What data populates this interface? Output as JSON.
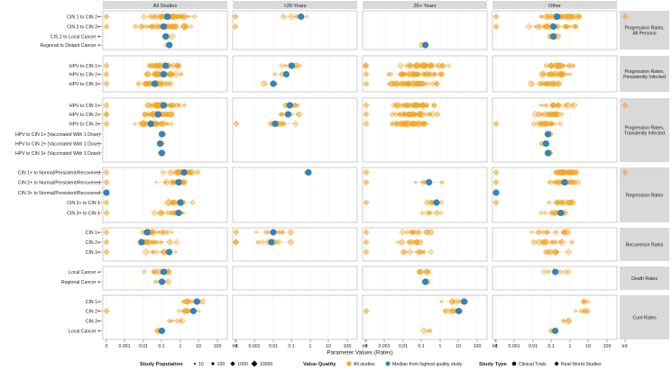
{
  "chart_data": {
    "type": "scatter",
    "panels": [
      "All Studies",
      "<26 Years",
      "26+ Years",
      "Other"
    ],
    "x_axis_label": "Parameter Values (Rates)",
    "x_ticks": [
      "0",
      "0.001",
      "0.01",
      "0.1",
      "1",
      "10",
      "100",
      "Inf."
    ],
    "x_scale": "log10 with 0 and Inf. endpoints",
    "groups": [
      {
        "label": "Progression Rates, All Persons",
        "rows": [
          "CIN 1 to CIN 2+",
          "CIN 2 to CIN 3+",
          "CIS 2 to Local Cancer +",
          "Regional to Distant Cancer +"
        ]
      },
      {
        "label": "Progression Rates, Persistently Infected",
        "rows": [
          "HPV to CIN 1+",
          "HPV to CIN 2+",
          "HPV to CIN 3+"
        ]
      },
      {
        "label": "Progression Rates, Transiently Infected",
        "rows": [
          "HPV to CIN 1+",
          "HPV to CIN 2+",
          "HPV to CIN 3+",
          "HPV to CIN 1+ (Vaccinated With 1 Dose)",
          "HPV to CIN 2+ (Vaccinated With 1 Dose)",
          "HPV to CIN 3+ (Vaccinated With 1 Dose)"
        ]
      },
      {
        "label": "Regression Rates",
        "rows": [
          "CIN 1+ to Normal/Persistent/Recovered",
          "CIN 2+ to Normal/Persistent/Recovered",
          "CIN 3+ to Normal/Persistent/Recovered",
          "CIN 2+ to CIN 1",
          "CIN 3+ to CIN 1"
        ]
      },
      {
        "label": "Recurrence Rates",
        "rows": [
          "CIN 1+",
          "CIN 2+",
          "CIN 3+"
        ]
      },
      {
        "label": "Death Rates",
        "rows": [
          "Local Cancer +",
          "Regional Cancer +"
        ]
      },
      {
        "label": "Cure Rates",
        "rows": [
          "CIN 1+",
          "CIN 2+",
          "CIN 3+",
          "Local Cancer +"
        ]
      }
    ],
    "series": [
      {
        "name": "Median from highest quality study",
        "color": "#2e86c1",
        "note": "median log10 rate per row and panel (null = no data); -5 denotes 0",
        "values": [
          [
            [
              -0.7,
              -0.5,
              null,
              -0.7
            ],
            [
              -0.9,
              null,
              null,
              -0.9
            ],
            [
              -0.8,
              null,
              null,
              -0.9
            ],
            [
              -0.6,
              null,
              -0.8,
              null
            ]
          ],
          [
            [
              -0.8,
              -1.0,
              null,
              null
            ],
            [
              -0.9,
              -1.3,
              null,
              null
            ],
            [
              -1.4,
              -2.0,
              null,
              null
            ]
          ],
          [
            [
              -0.9,
              -1.1,
              null,
              null
            ],
            [
              -1.2,
              -1.2,
              null,
              null
            ],
            [
              -1.6,
              -1.9,
              null,
              null
            ],
            [
              -1.0,
              null,
              null,
              -1.2
            ],
            [
              -1.1,
              null,
              null,
              -1.3
            ],
            [
              -1.0,
              null,
              null,
              -1.2
            ]
          ],
          [
            [
              0.2,
              -0.1,
              null,
              null
            ],
            [
              -0.1,
              null,
              -0.6,
              -0.3
            ],
            [
              -5,
              null,
              null,
              -5
            ],
            [
              0.0,
              null,
              -0.2,
              null
            ],
            [
              -0.1,
              null,
              null,
              -0.5
            ]
          ],
          [
            [
              -1.8,
              -2.0,
              null,
              null
            ],
            [
              -2.1,
              -2.1,
              null,
              null
            ],
            [
              -0.6,
              null,
              null,
              null
            ]
          ],
          [
            [
              -0.9,
              null,
              null,
              -0.8
            ],
            [
              -1.0,
              null,
              -0.8,
              null
            ]
          ],
          [
            [
              0.9,
              null,
              1.3,
              null
            ],
            [
              0.7,
              null,
              1.0,
              null
            ],
            [
              null,
              null,
              null,
              null
            ],
            [
              -1.0,
              null,
              null,
              -0.8
            ]
          ]
        ]
      },
      {
        "name": "Clinical Trials",
        "marker": "circle"
      },
      {
        "name": "Real-World Studies",
        "marker": "diamond"
      }
    ],
    "legend": {
      "size_title": "Study Population",
      "size_labels": [
        "10",
        "100",
        "1000",
        "10000"
      ],
      "quality_title": "Value Quality",
      "quality_all": "All studies",
      "quality_best": "Median from highest quality study",
      "type_title": "Study Type",
      "type_clinical": "Clinical Trials",
      "type_real": "Real-World Studies"
    },
    "colors": {
      "all_studies": "#f5a623",
      "median": "#2e86c1",
      "strip": "#d9d9d9"
    }
  }
}
